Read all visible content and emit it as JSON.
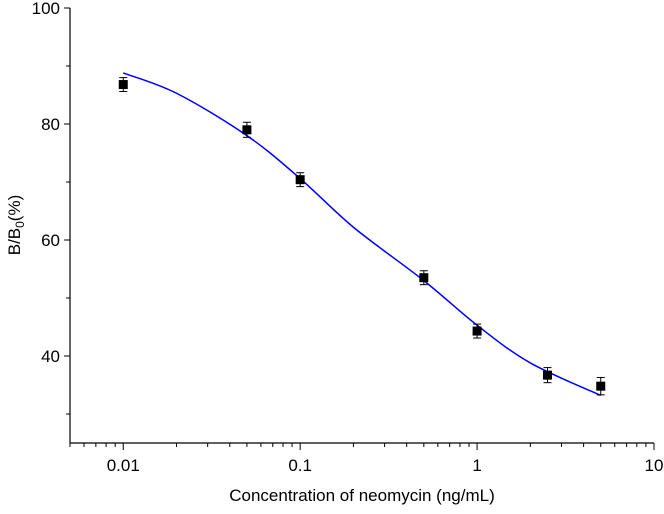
{
  "chart_data": {
    "type": "scatter",
    "title": "",
    "xlabel": "Concentration of neomycin (ng/mL)",
    "ylabel": {
      "main": "B/B",
      "sub": "0",
      "tail": "(%)"
    },
    "x_scale": "log",
    "xlim": [
      0.005,
      10
    ],
    "ylim": [
      25,
      100
    ],
    "x_ticks": [
      0.01,
      0.1,
      1,
      10
    ],
    "x_tick_labels": [
      "0.01",
      "0.1",
      "1",
      "10"
    ],
    "y_ticks": [
      40,
      60,
      80,
      100
    ],
    "y_tick_labels": [
      "40",
      "60",
      "80",
      "100"
    ],
    "y_minor_ticks": [
      30,
      50,
      70,
      90
    ],
    "grid": false,
    "series": [
      {
        "type": "scatter",
        "marker": "square",
        "color": "#000000",
        "x": [
          0.01,
          0.05,
          0.1,
          0.5,
          1,
          2.5,
          5
        ],
        "y": [
          86.8,
          79.0,
          70.4,
          53.5,
          44.3,
          36.7,
          34.8
        ],
        "error": [
          1.2,
          1.3,
          1.2,
          1.2,
          1.2,
          1.3,
          1.5
        ]
      },
      {
        "type": "line",
        "color": "#0000ee",
        "x": [
          0.01,
          0.02,
          0.05,
          0.1,
          0.2,
          0.5,
          1,
          2,
          5
        ],
        "y": [
          88.8,
          85.3,
          78.0,
          70.6,
          62.2,
          53.0,
          45.3,
          38.8,
          33.2
        ]
      }
    ]
  }
}
